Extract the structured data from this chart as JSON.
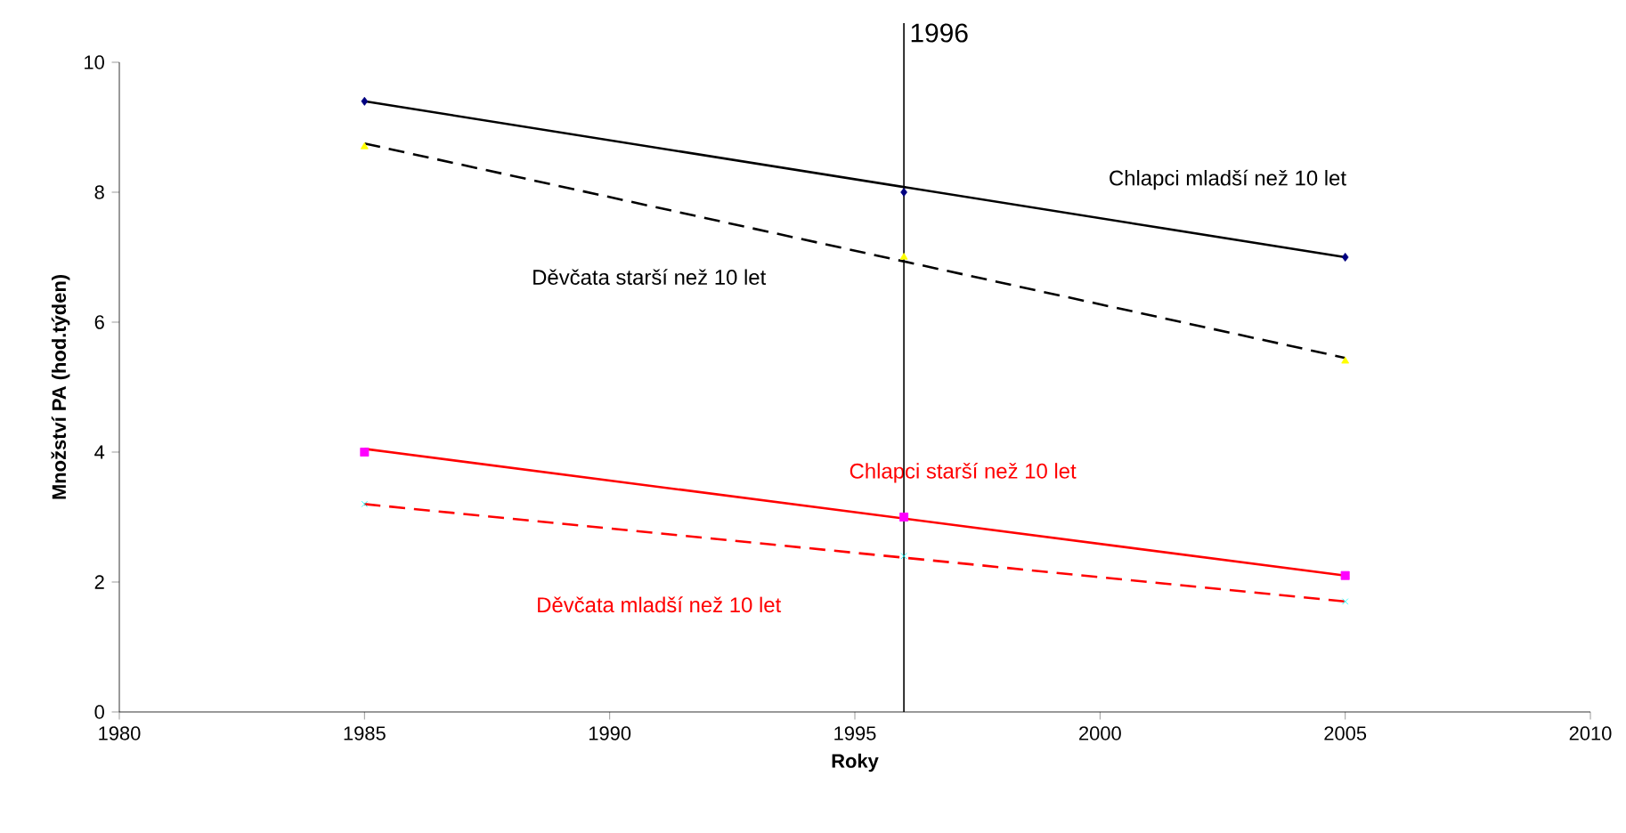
{
  "chart_data": {
    "type": "line",
    "xlabel": "Roky",
    "ylabel": "Množství PA (hod.týden)",
    "xlim": [
      1980,
      2010
    ],
    "xticks": [
      1980,
      1985,
      1990,
      1995,
      2000,
      2005,
      2010
    ],
    "ylim": [
      0,
      10
    ],
    "yticks": [
      0,
      2,
      4,
      6,
      8,
      10
    ],
    "series": [
      {
        "name": "Chlapci mladší než 10 let",
        "color": "#000000",
        "line_style": "solid",
        "x": [
          1985,
          2005
        ],
        "values": [
          9.4,
          7.0
        ]
      },
      {
        "name": "Děvčata starší než 10 let",
        "color": "#000000",
        "line_style": "dashed",
        "x": [
          1985,
          2005
        ],
        "values": [
          8.75,
          5.45
        ]
      },
      {
        "name": "Chlapci starší než 10 let",
        "color": "#ff0000",
        "line_style": "solid",
        "x": [
          1985,
          2005
        ],
        "values": [
          4.05,
          2.1
        ]
      },
      {
        "name": "Děvčata mladší než 10 let",
        "color": "#ff0000",
        "line_style": "dashed",
        "x": [
          1985,
          2005
        ],
        "values": [
          3.2,
          1.7
        ]
      },
      {
        "type": "scatter",
        "color": "#000080",
        "marker": "diamond",
        "x": [
          1985,
          1996,
          2005
        ],
        "values": [
          9.4,
          8.0,
          7.0
        ]
      },
      {
        "type": "scatter",
        "color": "#ffff00",
        "marker": "triangle",
        "x": [
          1985,
          1996,
          2005
        ],
        "values": [
          8.7,
          7.0,
          5.4
        ]
      },
      {
        "type": "scatter",
        "color": "#ff00ff",
        "marker": "square",
        "x": [
          1985,
          1996,
          2005
        ],
        "values": [
          4.0,
          3.0,
          2.1
        ]
      },
      {
        "type": "scatter",
        "color": "#00ffff",
        "marker": "cross",
        "x": [
          1985,
          1996,
          2005
        ],
        "values": [
          3.2,
          2.4,
          1.7
        ]
      }
    ],
    "ref_lines": [
      {
        "axis": "x",
        "value": 1996,
        "label": "1996"
      }
    ]
  }
}
